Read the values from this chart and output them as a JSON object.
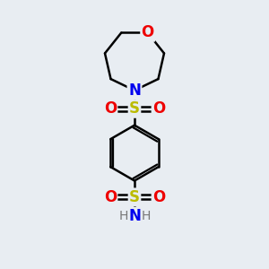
{
  "background_color": "#e8edf2",
  "line_color": "#000000",
  "bond_width": 1.8,
  "figsize": [
    3.0,
    3.0
  ],
  "dpi": 100,
  "colors": {
    "C": "#000000",
    "N": "#0000ee",
    "O": "#ee0000",
    "S": "#bbbb00",
    "H": "#777777"
  },
  "xlim": [
    0,
    10
  ],
  "ylim": [
    0,
    10
  ]
}
